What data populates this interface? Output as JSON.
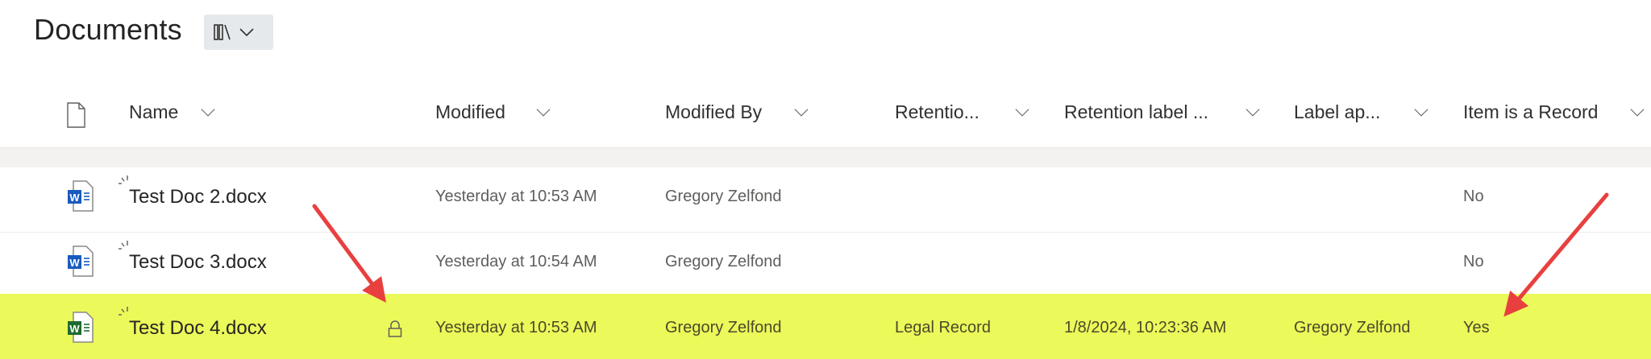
{
  "header": {
    "title": "Documents",
    "view_icon": "library-icon"
  },
  "columns": [
    "Name",
    "Modified",
    "Modified By",
    "Retentio...",
    "Retention label ...",
    "Label ap...",
    "Item is a Record"
  ],
  "rows": [
    {
      "name": "Test Doc 2.docx",
      "modified": "Yesterday at 10:53 AM",
      "modified_by": "Gregory Zelfond",
      "retention": "",
      "retention_date": "",
      "label_applied_by": "",
      "is_record": "No",
      "locked": false
    },
    {
      "name": "Test Doc 3.docx",
      "modified": "Yesterday at 10:54 AM",
      "modified_by": "Gregory Zelfond",
      "retention": "",
      "retention_date": "",
      "label_applied_by": "",
      "is_record": "No",
      "locked": false
    },
    {
      "name": "Test Doc 4.docx",
      "modified": "Yesterday at 10:53 AM",
      "modified_by": "Gregory Zelfond",
      "retention": "Legal Record",
      "retention_date": "1/8/2024, 10:23:36 AM",
      "label_applied_by": "Gregory Zelfond",
      "is_record": "Yes",
      "locked": true,
      "highlighted": true
    }
  ],
  "colors": {
    "highlight": "#ebf95a",
    "annotation_arrow": "#e8403f",
    "word_blue": "#185abd",
    "word_green": "#1e6b2f"
  }
}
